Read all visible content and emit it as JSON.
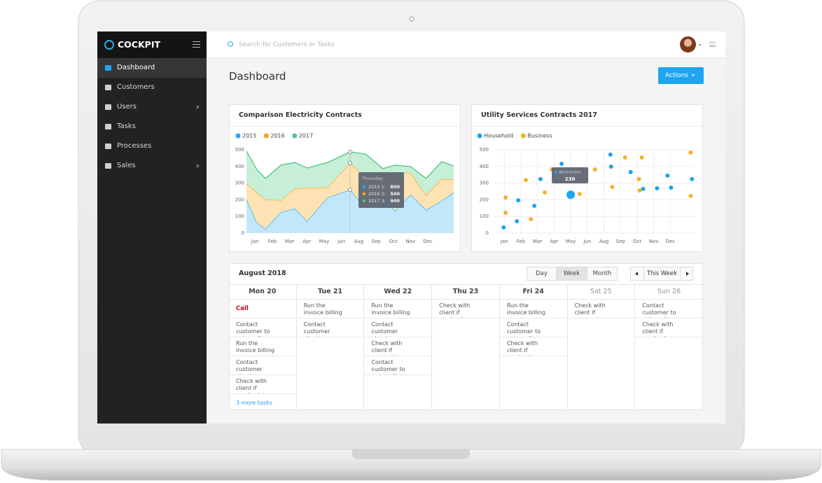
{
  "sidebar": {
    "brand": "COCKPIT",
    "menu": [
      "Dashboard",
      "Customers",
      "Users",
      "Tasks",
      "Processes",
      "Sales"
    ]
  },
  "topbar": {
    "search_placeholder": "Search for Customers or Tasks"
  },
  "page": {
    "title": "Dashboard",
    "actions": "Actions"
  },
  "chart_data": [
    {
      "type": "area",
      "title": "Comparison Electricity Contracts",
      "stacked": true,
      "legend": "top-left",
      "grid": false,
      "x": [
        0.5,
        1.1,
        1.6,
        2.5,
        3.3,
        4,
        5.2,
        6.5,
        7.4,
        8.4,
        9.1,
        10,
        10.9,
        11.8,
        12.5
      ],
      "series": [
        {
          "name": "2015",
          "color": "#29a9ec",
          "values": [
            202,
            63,
            25,
            126,
            147,
            71,
            214,
            260,
            151,
            214,
            134,
            231,
            139,
            193,
            244
          ]
        },
        {
          "name": "2016",
          "color": "#f5a623",
          "values": [
            96,
            181,
            177,
            71,
            118,
            202,
            59,
            160,
            185,
            126,
            232,
            130,
            88,
            131,
            80
          ]
        },
        {
          "name": "2017",
          "color": "#4cc788",
          "values": [
            194,
            138,
            126,
            211,
            159,
            118,
            151,
            67,
            139,
            47,
            42,
            38,
            101,
            105,
            79
          ]
        }
      ],
      "xlim": [
        0.5,
        12.5
      ],
      "xticks": [
        {
          "value": 1,
          "label": "Jan"
        },
        {
          "value": 2,
          "label": "Feb"
        },
        {
          "value": 3,
          "label": "Mar"
        },
        {
          "value": 4,
          "label": "Apr"
        },
        {
          "value": 5,
          "label": "May"
        },
        {
          "value": 6,
          "label": "Jun"
        },
        {
          "value": 7,
          "label": "Aug"
        },
        {
          "value": 8,
          "label": "Sep"
        },
        {
          "value": 9,
          "label": "Oct"
        },
        {
          "value": 10,
          "label": "Nov"
        },
        {
          "value": 11,
          "label": "Dec"
        }
      ],
      "ylim": [
        0,
        500
      ],
      "yticks": [
        0,
        100,
        200,
        300,
        400,
        500
      ],
      "tooltip": {
        "title": "Thursday",
        "rows": [
          {
            "label": "2015 1:",
            "value": 800
          },
          {
            "label": "2016 2:",
            "value": 500
          },
          {
            "label": "2017 3:",
            "value": 900
          }
        ]
      }
    },
    {
      "type": "scatter",
      "title": "Utility Services Contracts 2017",
      "legend": "top-left",
      "grid": true,
      "series": [
        {
          "name": "Household",
          "color": "#1aa7ec",
          "x": [
            0.96,
            1.76,
            1.84,
            2.81,
            3.18,
            4.45,
            5,
            7.39,
            7.43,
            8.61,
            9.36,
            10.2,
            10.83,
            11.04,
            12.3
          ],
          "values": [
            34,
            71,
            197,
            164,
            324,
            416,
            230,
            471,
            399,
            366,
            265,
            269,
            345,
            273,
            324
          ]
        },
        {
          "name": "Business",
          "color": "#f7b12b",
          "x": [
            1.08,
            1.08,
            2.3,
            2.6,
            3.44,
            3.86,
            5.54,
            6.46,
            7.5,
            8.27,
            9.11,
            9.15,
            9.28,
            12.22,
            12.22
          ],
          "values": [
            214,
            122,
            319,
            84,
            244,
            382,
            235,
            382,
            277,
            454,
            324,
            256,
            454,
            483,
            223
          ]
        }
      ],
      "xlim": [
        0.4,
        12.5
      ],
      "xticks": [
        {
          "value": 1,
          "label": "Jan"
        },
        {
          "value": 2,
          "label": "Feb"
        },
        {
          "value": 3,
          "label": "Mar"
        },
        {
          "value": 4,
          "label": "Apr"
        },
        {
          "value": 5,
          "label": "May"
        },
        {
          "value": 6,
          "label": "Jun"
        },
        {
          "value": 7,
          "label": "Aug"
        },
        {
          "value": 8,
          "label": "Sep"
        },
        {
          "value": 9,
          "label": "Oct"
        },
        {
          "value": 10,
          "label": "Nov"
        },
        {
          "value": 11,
          "label": "Dec"
        }
      ],
      "ylim": [
        0,
        500
      ],
      "yticks": [
        0,
        100,
        200,
        300,
        400,
        500
      ],
      "tooltip": {
        "title": "Wednesday"
      }
    }
  ],
  "calendar": {
    "title": "August 2018",
    "views": [
      "Day",
      "Week",
      "Month"
    ],
    "nav": "This Week",
    "days": [
      {
        "name": "Mon 20",
        "urgent": "Call Caroline Taylor",
        "tasks": [
          "Contact customer to get reading",
          "Run the invoice billing process",
          "Contact customer about new plans",
          "Check with client if service is running"
        ],
        "more": "3 more tasks"
      },
      {
        "name": "Tue 21",
        "tasks": [
          "Run the invoice billing process",
          "Contact customer about new plans"
        ]
      },
      {
        "name": "Wed 22",
        "tasks": [
          "Run the invoice billing process",
          "Contact customer about new plans",
          "Check with client if service is running",
          "Contact customer to get reading"
        ]
      },
      {
        "name": "Thu 23",
        "tasks": [
          "Check with client if service is running"
        ]
      },
      {
        "name": "Fri 24",
        "tasks": [
          "Run the invoice billing process",
          "Contact customer to get reading",
          "Check with client if service is running"
        ]
      },
      {
        "name": "Sat 25",
        "tasks": [
          "Check with client if service is running"
        ]
      },
      {
        "name": "Sun 26",
        "tasks": [
          "Contact customer to get reading",
          "Check with client if service is running"
        ]
      }
    ]
  }
}
